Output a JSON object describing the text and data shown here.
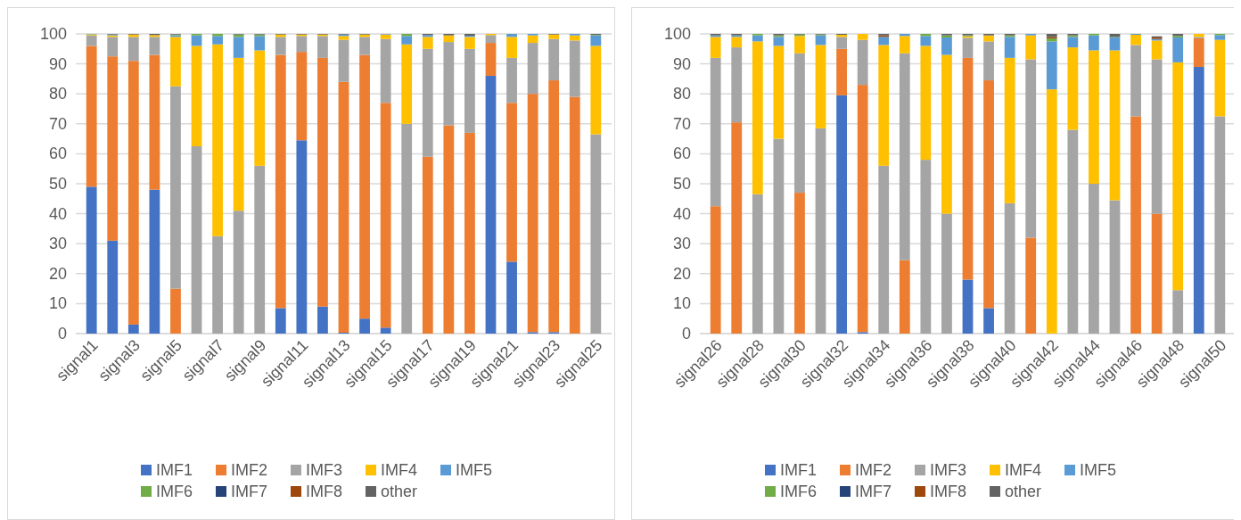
{
  "chart_data": [
    {
      "type": "bar",
      "stacked": true,
      "categories": [
        "signal1",
        null,
        "signal3",
        null,
        "signal5",
        null,
        "signal7",
        null,
        "signal9",
        null,
        "signal11",
        null,
        "signal13",
        null,
        "signal15",
        null,
        "signal17",
        null,
        "signal19",
        null,
        "signal21",
        null,
        "signal23",
        null,
        "signal25"
      ],
      "ylim": [
        0,
        100
      ],
      "yticks": [
        0,
        10,
        20,
        30,
        40,
        50,
        60,
        70,
        80,
        90,
        100
      ],
      "grid": "y",
      "legend": "bottom",
      "series": [
        {
          "name": "IMF1",
          "color": "#4472c4",
          "values": [
            49,
            31,
            3,
            48,
            0,
            0,
            0,
            0,
            0,
            8.5,
            64.5,
            9,
            0.3,
            5,
            2,
            0,
            0,
            0,
            0,
            86,
            24,
            0.5,
            0.5,
            0,
            0
          ]
        },
        {
          "name": "IMF2",
          "color": "#ed7d31",
          "values": [
            47,
            61.5,
            88,
            45,
            15,
            0,
            0,
            0,
            0,
            84.5,
            29.5,
            83,
            83.7,
            88,
            75,
            0,
            59,
            69.5,
            67,
            11,
            53,
            79.5,
            84,
            79,
            0
          ]
        },
        {
          "name": "IMF3",
          "color": "#a5a5a5",
          "values": [
            3.5,
            6.5,
            8,
            6,
            67.5,
            62.5,
            32.5,
            41,
            56,
            6,
            5.3,
            7.3,
            14,
            6,
            21.3,
            70,
            36,
            27.8,
            28,
            2.6,
            15,
            17,
            13.8,
            18.8,
            66.5
          ]
        },
        {
          "name": "IMF4",
          "color": "#ffc000",
          "values": [
            0.3,
            0.5,
            0.8,
            0.6,
            16.5,
            33.5,
            64,
            51,
            38.5,
            0.8,
            0.5,
            0.5,
            1.3,
            0.8,
            1.5,
            26.5,
            4,
            2.2,
            4,
            0.4,
            7,
            2.5,
            1.5,
            1.7,
            29.5
          ]
        },
        {
          "name": "IMF5",
          "color": "#5b9bd5",
          "values": [
            0.1,
            0.3,
            0,
            0,
            0.5,
            3.5,
            2.8,
            7,
            4.8,
            0,
            0,
            0,
            0.5,
            0,
            0.2,
            2.8,
            0.6,
            0,
            0.4,
            0,
            1,
            0.5,
            0,
            0.5,
            3.5
          ]
        },
        {
          "name": "IMF6",
          "color": "#70ad47",
          "values": [
            0.1,
            0,
            0,
            0,
            0.3,
            0.5,
            0.7,
            0.8,
            0.5,
            0,
            0,
            0,
            0,
            0,
            0,
            0.7,
            0,
            0,
            0,
            0,
            0,
            0,
            0,
            0,
            0.2
          ]
        },
        {
          "name": "IMF7",
          "color": "#264478",
          "values": [
            0,
            0,
            0,
            0,
            0,
            0,
            0,
            0,
            0,
            0,
            0,
            0,
            0,
            0,
            0,
            0,
            0,
            0,
            0,
            0,
            0,
            0,
            0,
            0,
            0
          ]
        },
        {
          "name": "IMF8",
          "color": "#9e480e",
          "values": [
            0,
            0,
            0,
            0,
            0,
            0,
            0,
            0,
            0,
            0,
            0,
            0,
            0,
            0,
            0,
            0,
            0,
            0,
            0,
            0,
            0,
            0,
            0,
            0,
            0
          ]
        },
        {
          "name": "other",
          "color": "#636363",
          "values": [
            0,
            0.2,
            0.2,
            0.4,
            0.2,
            0,
            0,
            0.2,
            0.2,
            0.2,
            0.2,
            0.2,
            0.2,
            0.2,
            0,
            0,
            0.4,
            0.5,
            0.6,
            0,
            0,
            0,
            0.2,
            0,
            0.3
          ]
        }
      ]
    },
    {
      "type": "bar",
      "stacked": true,
      "categories": [
        "signal26",
        null,
        "signal28",
        null,
        "signal30",
        null,
        "signal32",
        null,
        "signal34",
        null,
        "signal36",
        null,
        "signal38",
        null,
        "signal40",
        null,
        "signal42",
        null,
        "signal44",
        null,
        "signal46",
        null,
        "signal48",
        null,
        "signal50"
      ],
      "ylim": [
        0,
        100
      ],
      "yticks": [
        0,
        10,
        20,
        30,
        40,
        50,
        60,
        70,
        80,
        90,
        100
      ],
      "grid": "y",
      "legend": "bottom",
      "series": [
        {
          "name": "IMF1",
          "color": "#4472c4",
          "values": [
            0,
            0,
            0,
            0,
            0,
            0,
            79.5,
            0.5,
            0,
            0,
            0,
            0,
            18,
            8.5,
            0,
            0,
            0,
            0,
            0,
            0,
            0,
            0,
            0,
            89,
            0
          ]
        },
        {
          "name": "IMF2",
          "color": "#ed7d31",
          "values": [
            42.5,
            70.5,
            0,
            0,
            47,
            0,
            15.5,
            82.5,
            0,
            24.5,
            0,
            0,
            74,
            76,
            0,
            32,
            0,
            0,
            0,
            0,
            72.5,
            40,
            0,
            9.5,
            0
          ]
        },
        {
          "name": "IMF3",
          "color": "#a5a5a5",
          "values": [
            49.5,
            25,
            46.5,
            65,
            46.5,
            68.5,
            4,
            15,
            56,
            69,
            58,
            40,
            6.7,
            13,
            43.5,
            59.5,
            0,
            68,
            50,
            44.5,
            23.8,
            51.5,
            14.5,
            0.5,
            72.5
          ]
        },
        {
          "name": "IMF4",
          "color": "#ffc000",
          "values": [
            7,
            3.5,
            51,
            31,
            5.8,
            27.8,
            0.7,
            2,
            40.3,
            5.8,
            38,
            53,
            0.5,
            2,
            48.5,
            8,
            81.5,
            27.5,
            44.5,
            50,
            3.4,
            6.3,
            76,
            1,
            25.5
          ]
        },
        {
          "name": "IMF5",
          "color": "#5b9bd5",
          "values": [
            0.5,
            0.5,
            2,
            3,
            0,
            3.2,
            0,
            0,
            2.7,
            0.7,
            3.3,
            5.8,
            0,
            0,
            7,
            0.5,
            16,
            3.5,
            5,
            4.3,
            0.3,
            0.5,
            8.3,
            0,
            1.6
          ]
        },
        {
          "name": "IMF6",
          "color": "#70ad47",
          "values": [
            0,
            0,
            0.5,
            0.5,
            0.5,
            0.3,
            0,
            0,
            0,
            0,
            0.7,
            0.7,
            0.3,
            0,
            0.5,
            0,
            1,
            0.5,
            0.5,
            0.2,
            0,
            0,
            0.5,
            0,
            0.4
          ]
        },
        {
          "name": "IMF7",
          "color": "#264478",
          "values": [
            0,
            0,
            0,
            0,
            0,
            0,
            0,
            0,
            0,
            0,
            0,
            0,
            0,
            0,
            0,
            0,
            0,
            0,
            0,
            0,
            0,
            0,
            0,
            0,
            0
          ]
        },
        {
          "name": "IMF8",
          "color": "#9e480e",
          "values": [
            0,
            0,
            0,
            0,
            0,
            0,
            0,
            0,
            0.5,
            0,
            0,
            0,
            0,
            0,
            0,
            0,
            0.5,
            0,
            0,
            0,
            0,
            0.5,
            0,
            0,
            0
          ]
        },
        {
          "name": "other",
          "color": "#636363",
          "values": [
            0.5,
            0.5,
            0,
            0.5,
            0.2,
            0.2,
            0.3,
            0,
            0.5,
            0,
            0,
            0.5,
            0.5,
            0.5,
            0.5,
            0,
            1,
            0.5,
            0,
            1,
            0,
            0.4,
            0.7,
            0,
            0
          ]
        }
      ]
    }
  ]
}
